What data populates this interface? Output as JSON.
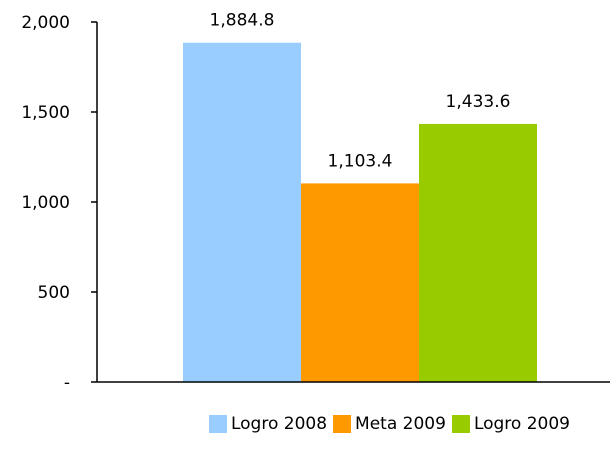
{
  "chart_data": {
    "type": "bar",
    "categories": [
      "Logro 2008",
      "Meta 2009",
      "Logro 2009"
    ],
    "values": [
      1884.8,
      1103.4,
      1433.6
    ],
    "data_labels": [
      "1,884.8",
      "1,103.4",
      "1,433.6"
    ],
    "colors": [
      "#99ccff",
      "#ff9900",
      "#99cc00"
    ],
    "ylim": [
      0,
      2000
    ],
    "yticks": [
      0,
      500,
      1000,
      1500,
      2000
    ],
    "ytick_labels": [
      "-",
      "500",
      "1,000",
      "1,500",
      "2,000"
    ],
    "grid": false,
    "legend_position": "bottom",
    "legend": [
      "Logro 2008",
      "Meta 2009",
      "Logro 2009"
    ]
  }
}
